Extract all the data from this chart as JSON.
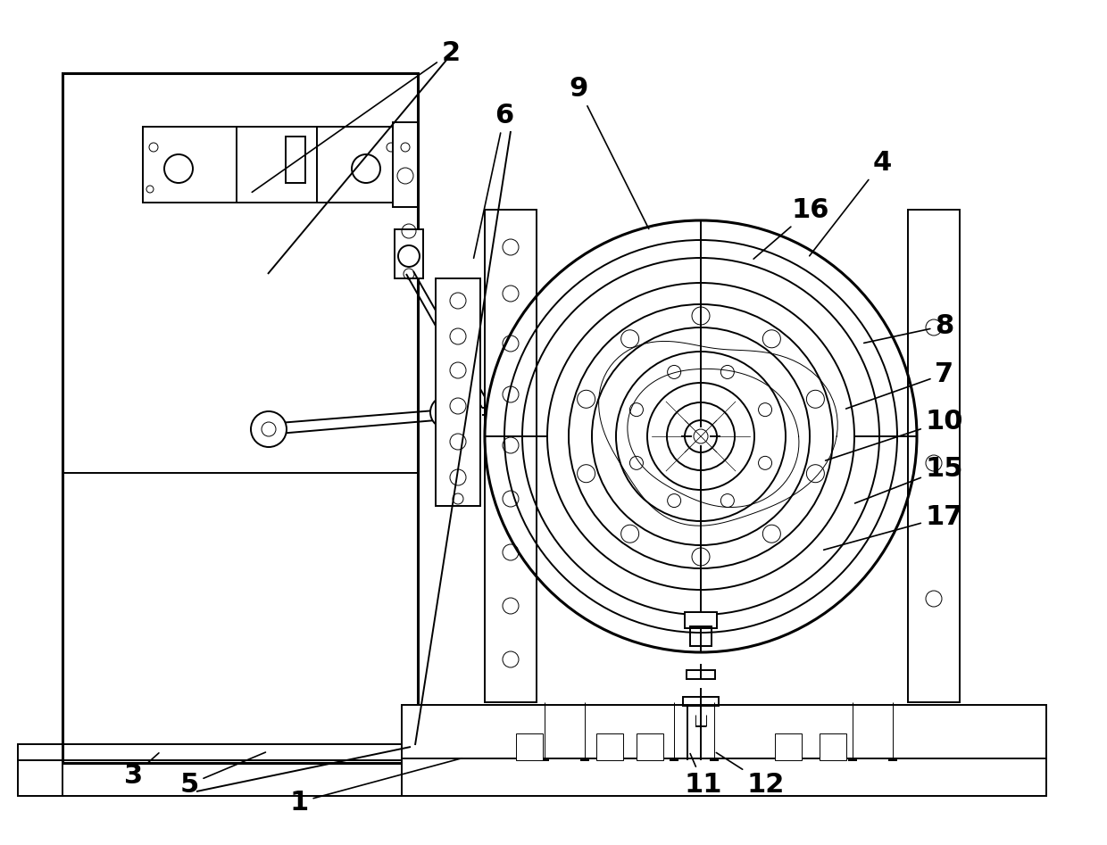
{
  "bg_color": "#ffffff",
  "line_color": "#000000",
  "lw": 1.4,
  "tlw": 0.7,
  "thk": 2.2,
  "fig_width": 12.4,
  "fig_height": 9.47,
  "label_fontsize": 22
}
